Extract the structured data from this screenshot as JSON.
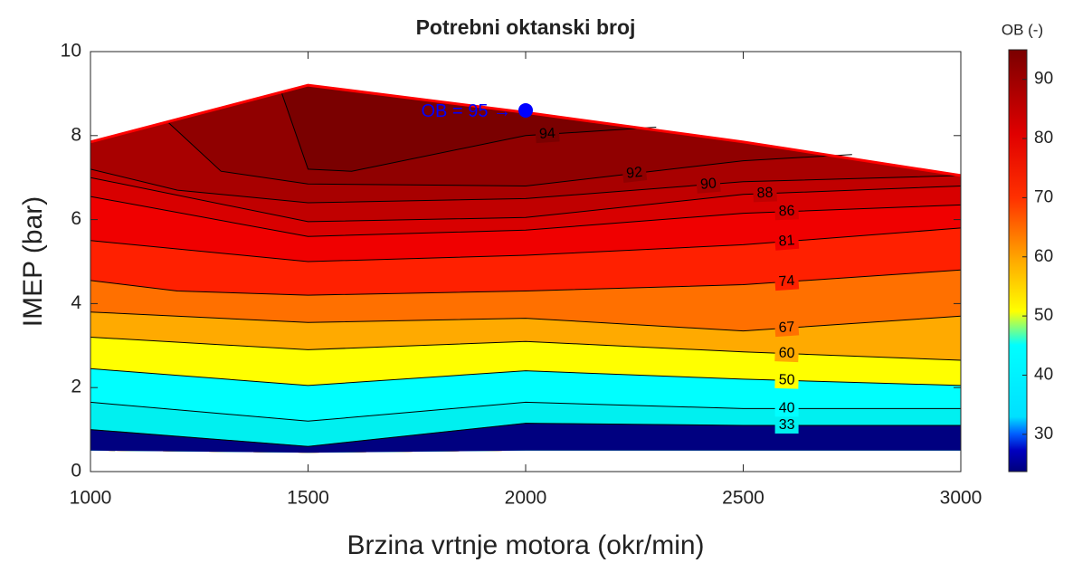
{
  "chart_data": {
    "type": "contour",
    "title": "Potrebni oktanski broj",
    "xlabel": "Brzina vrtnje motora (okr/min)",
    "ylabel": "IMEP (bar)",
    "xlim": [
      1000,
      3000
    ],
    "ylim": [
      0,
      10
    ],
    "xticks": [
      1000,
      1500,
      2000,
      2500,
      3000
    ],
    "yticks": [
      0,
      2,
      4,
      6,
      8,
      10
    ],
    "upper": {
      "x": [
        1000,
        1500,
        2000,
        2500,
        3000
      ],
      "y": [
        7.85,
        9.2,
        8.55,
        7.85,
        7.05
      ],
      "color": "#ff0000"
    },
    "lower": {
      "x": [
        1000,
        1500,
        2000,
        2500,
        3000
      ],
      "y": [
        0.5,
        0.45,
        0.5,
        0.5,
        0.5
      ]
    },
    "contours": [
      {
        "level": 33,
        "x": [
          1000,
          1500,
          2000,
          2500,
          3000
        ],
        "y": [
          1.0,
          0.6,
          1.15,
          1.1,
          1.1
        ]
      },
      {
        "level": 40,
        "x": [
          1000,
          1500,
          2000,
          2500,
          3000
        ],
        "y": [
          1.65,
          1.2,
          1.65,
          1.5,
          1.5
        ]
      },
      {
        "level": 50,
        "x": [
          1000,
          1500,
          2000,
          2500,
          3000
        ],
        "y": [
          2.45,
          2.05,
          2.4,
          2.2,
          2.05
        ]
      },
      {
        "level": 60,
        "x": [
          1000,
          1500,
          2000,
          2500,
          3000
        ],
        "y": [
          3.2,
          2.9,
          3.1,
          2.85,
          2.65
        ]
      },
      {
        "level": 67,
        "x": [
          1000,
          1500,
          2000,
          2500,
          3000
        ],
        "y": [
          3.8,
          3.55,
          3.65,
          3.35,
          3.7
        ]
      },
      {
        "level": 74,
        "x": [
          1000,
          1200,
          1500,
          2000,
          2500,
          3000
        ],
        "y": [
          4.55,
          4.3,
          4.2,
          4.3,
          4.45,
          4.8
        ]
      },
      {
        "level": 81,
        "x": [
          1000,
          1500,
          2000,
          2500,
          3000
        ],
        "y": [
          5.5,
          5.0,
          5.15,
          5.4,
          5.8
        ]
      },
      {
        "level": 86,
        "x": [
          1000,
          1500,
          2000,
          2500,
          3000
        ],
        "y": [
          6.55,
          5.6,
          5.75,
          6.15,
          6.35
        ]
      },
      {
        "level": 88,
        "x": [
          1000,
          1500,
          2000,
          2500,
          3000
        ],
        "y": [
          7.0,
          5.95,
          6.05,
          6.6,
          6.8
        ]
      },
      {
        "level": 90,
        "x": [
          1000,
          1200,
          1500,
          2000,
          2500,
          3000
        ],
        "y": [
          7.2,
          6.7,
          6.4,
          6.5,
          6.9,
          7.05
        ]
      },
      {
        "level": 92,
        "x": [
          1180,
          1300,
          1500,
          2000,
          2500,
          2750
        ],
        "y": [
          8.3,
          7.15,
          6.85,
          6.8,
          7.4,
          7.55
        ]
      },
      {
        "level": 94,
        "x": [
          1440,
          1500,
          1600,
          2000,
          2300
        ],
        "y": [
          9.0,
          7.2,
          7.15,
          8.0,
          8.2
        ]
      }
    ],
    "band_colors": [
      "#000080",
      "#00f0f0",
      "#00ffff",
      "#ffff00",
      "#ffaa00",
      "#ff7000",
      "#ff2000",
      "#f00000",
      "#d80000",
      "#c00000",
      "#a80000",
      "#900000",
      "#7a0000"
    ],
    "point": {
      "x": 2000,
      "y": 8.6,
      "color": "#0000ff",
      "label": "OB = 95  →"
    },
    "colorbar": {
      "title": "OB (-)",
      "clim": [
        23.7,
        95
      ],
      "ticks": [
        30,
        40,
        50,
        60,
        70,
        80,
        90
      ]
    }
  }
}
